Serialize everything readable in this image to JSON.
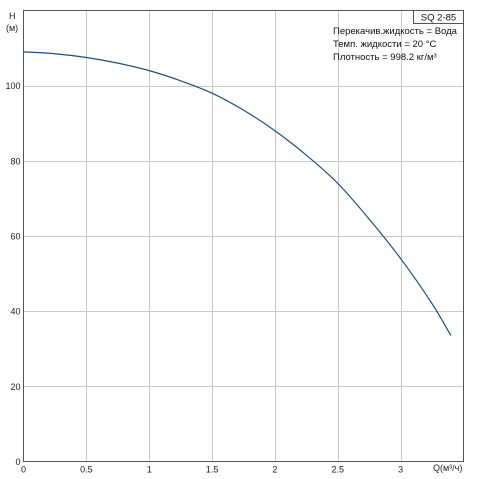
{
  "chart_data": {
    "type": "line",
    "title": "SQ 2-85",
    "xlabel": "Q(м³/ч)",
    "ylabel_top": "H",
    "ylabel_unit": "(м)",
    "xlim": [
      0,
      3.5
    ],
    "ylim": [
      0,
      120
    ],
    "x_ticks": [
      0,
      0.5,
      1,
      1.5,
      2,
      2.5,
      3
    ],
    "x_tick_labels": [
      "0",
      "0.5",
      "1",
      "1.5",
      "2",
      "2.5",
      "3"
    ],
    "y_ticks": [
      0,
      20,
      40,
      60,
      80,
      100
    ],
    "y_tick_labels": [
      "0",
      "20",
      "40",
      "60",
      "80",
      "100"
    ],
    "grid": true,
    "info_lines": [
      "Перекачив.жидкость = Вода",
      "Темп. жидкости = 20 °C",
      "Плотность = 998.2 кг/м³"
    ],
    "series": [
      {
        "color": "#1f4e79",
        "x": [
          0,
          0.25,
          0.5,
          0.75,
          1.0,
          1.25,
          1.5,
          1.75,
          2.0,
          2.25,
          2.5,
          2.75,
          3.0,
          3.25,
          3.4
        ],
        "y": [
          109.0,
          108.5,
          107.5,
          106.0,
          104.0,
          101.3,
          98.0,
          93.5,
          88.0,
          81.5,
          74.0,
          64.5,
          54.0,
          42.0,
          33.5
        ]
      }
    ]
  }
}
